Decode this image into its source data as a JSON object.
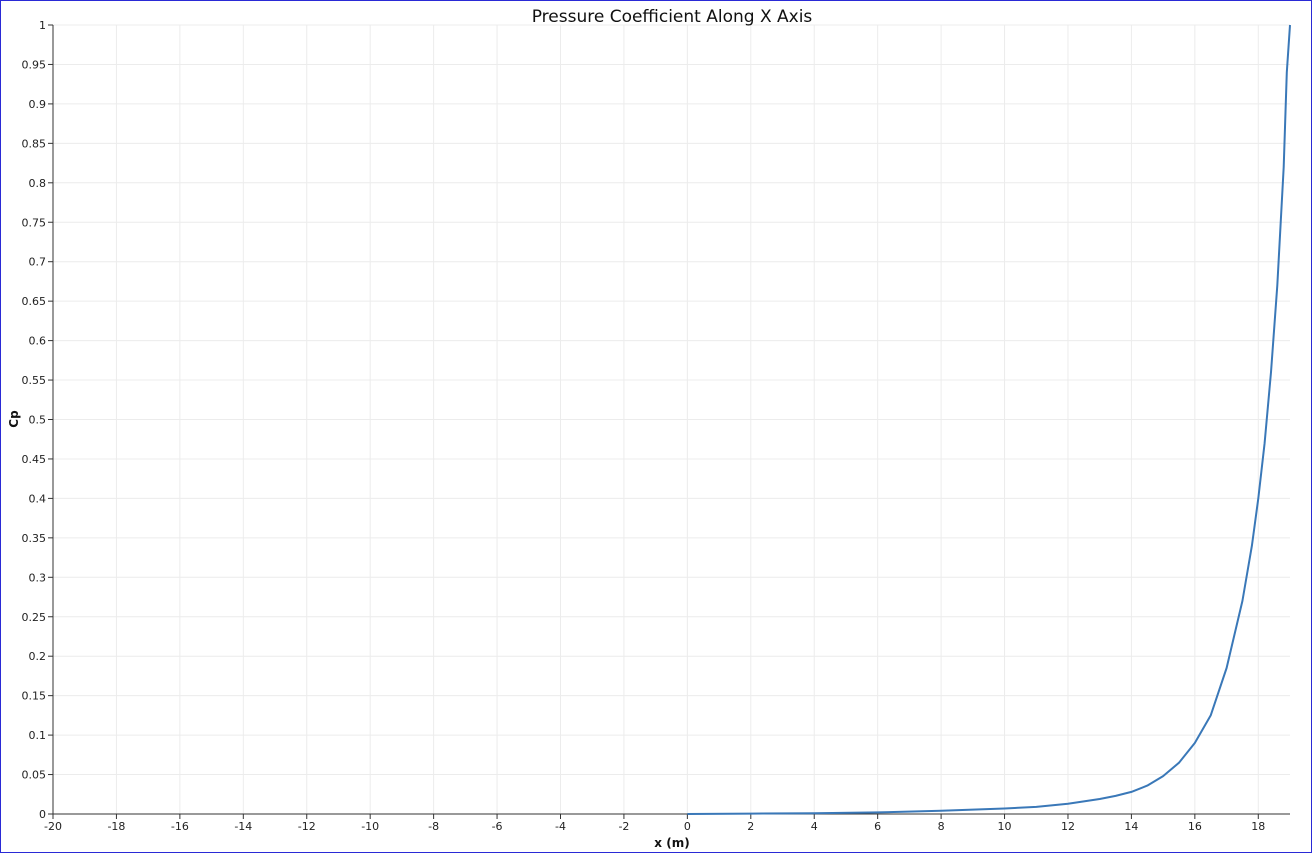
{
  "chart_data": {
    "type": "line",
    "title": "Pressure Coefficient Along X Axis",
    "xlabel": "x (m)",
    "ylabel": "Cp",
    "xlim": [
      -20,
      19
    ],
    "ylim": [
      0,
      1
    ],
    "x_ticks": [
      -20,
      -18,
      -16,
      -14,
      -12,
      -10,
      -8,
      -6,
      -4,
      -2,
      0,
      2,
      4,
      6,
      8,
      10,
      12,
      14,
      16,
      18
    ],
    "x_tick_labels": [
      "-20",
      "-18",
      "-16",
      "-14",
      "-12",
      "-10",
      "-8",
      "-6",
      "-4",
      "-2",
      "0",
      "2",
      "4",
      "6",
      "8",
      "10",
      "12",
      "14",
      "16",
      "18"
    ],
    "y_ticks": [
      0,
      0.05,
      0.1,
      0.15,
      0.2,
      0.25,
      0.3,
      0.35,
      0.4,
      0.45,
      0.5,
      0.55,
      0.6,
      0.65,
      0.7,
      0.75,
      0.8,
      0.85,
      0.9,
      0.95,
      1
    ],
    "y_tick_labels": [
      "0",
      "0.05",
      "0.1",
      "0.15",
      "0.2",
      "0.25",
      "0.3",
      "0.35",
      "0.4",
      "0.45",
      "0.5",
      "0.55",
      "0.6",
      "0.65",
      "0.7",
      "0.75",
      "0.8",
      "0.85",
      "0.9",
      "0.95",
      "1"
    ],
    "grid": true,
    "series": [
      {
        "color": "#3a78b8",
        "x": [
          0,
          2,
          4,
          6,
          8,
          10,
          11,
          12,
          13,
          13.5,
          14,
          14.5,
          15,
          15.5,
          16,
          16.5,
          17,
          17.5,
          17.8,
          18,
          18.2,
          18.4,
          18.6,
          18.8,
          18.9,
          19
        ],
        "y": [
          0,
          0.0005,
          0.001,
          0.002,
          0.004,
          0.007,
          0.009,
          0.013,
          0.019,
          0.023,
          0.028,
          0.036,
          0.048,
          0.065,
          0.09,
          0.125,
          0.185,
          0.27,
          0.34,
          0.4,
          0.47,
          0.56,
          0.67,
          0.82,
          0.94,
          1.0
        ]
      }
    ]
  }
}
